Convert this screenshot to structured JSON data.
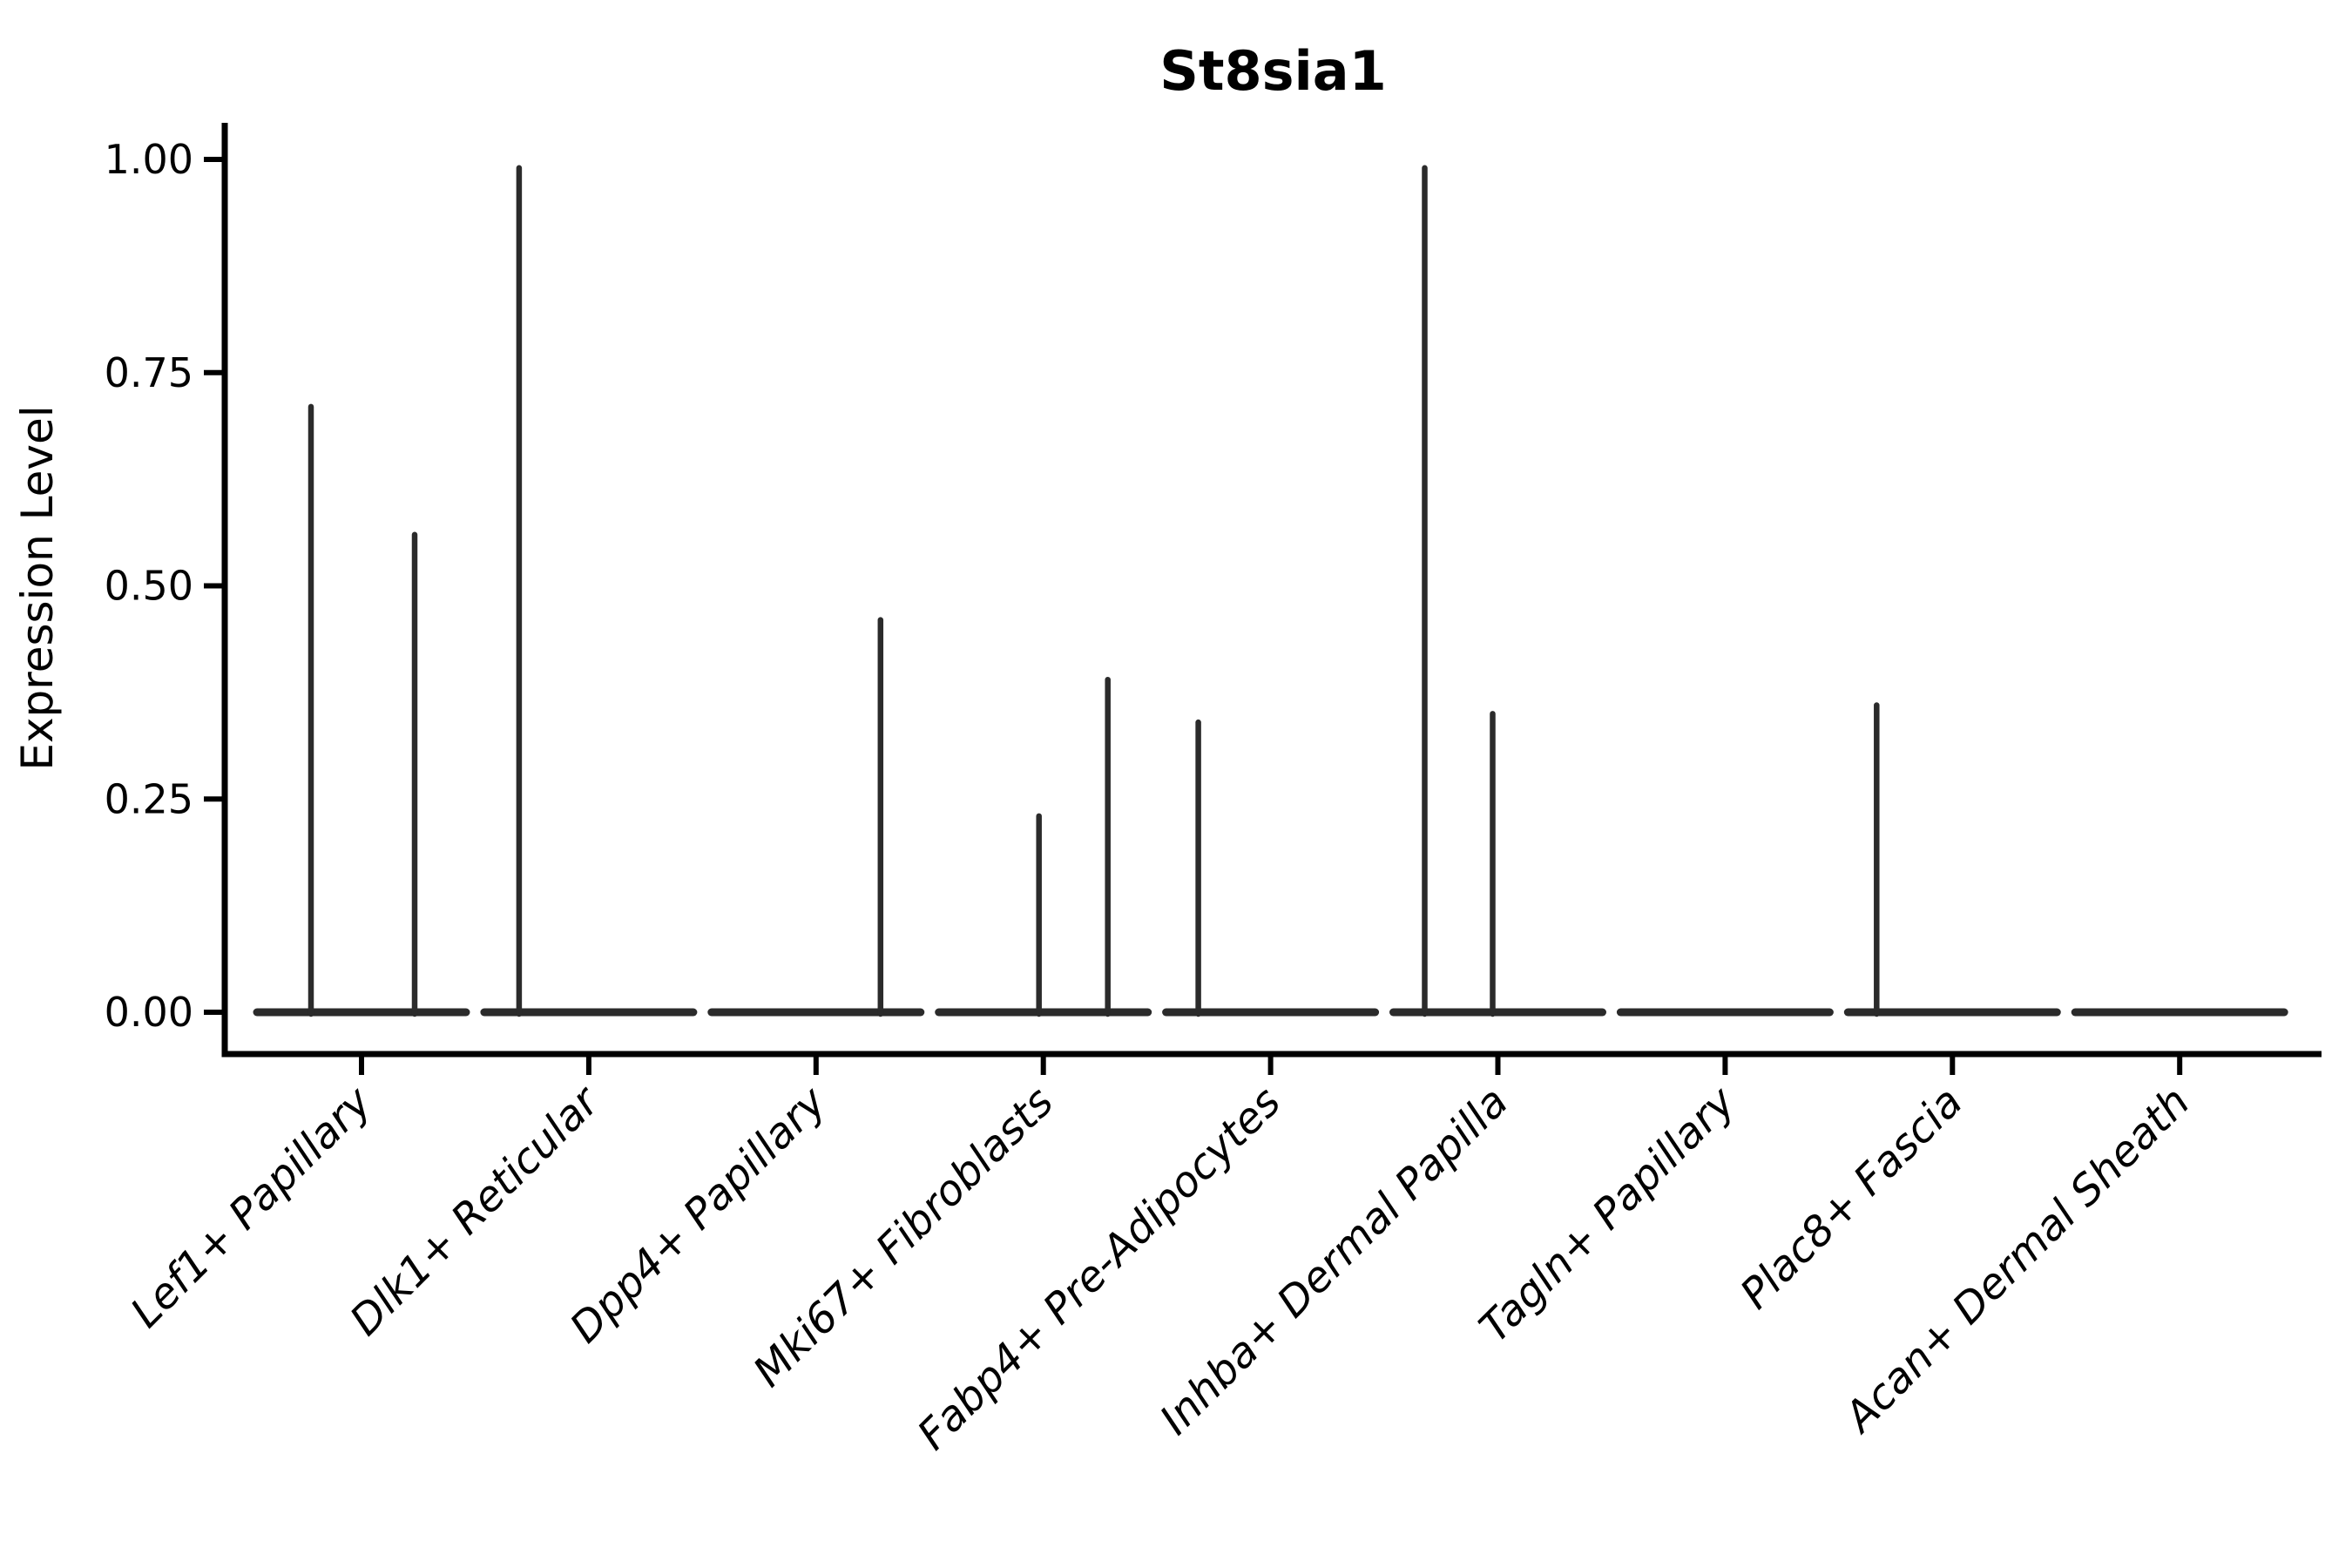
{
  "figure": {
    "title": "St8sia1",
    "y_axis": {
      "label": "Expression Level",
      "tick_labels": [
        "1.00",
        "0.75",
        "0.50",
        "0.25",
        "0.00"
      ],
      "tick_values": [
        1.0,
        0.75,
        0.5,
        0.25,
        0.0
      ]
    },
    "colors": {
      "background": "#ffffff",
      "axis": "#000000",
      "text": "#000000",
      "violin": "#2b2b2b"
    }
  },
  "chart_data": {
    "type": "violin",
    "title": "St8sia1",
    "xlabel": "",
    "ylabel": "Expression Level",
    "ylim": [
      0,
      1.0
    ],
    "yticks": [
      0.0,
      0.25,
      0.5,
      0.75,
      1.0
    ],
    "ytick_labels": [
      "0.00",
      "0.25",
      "0.50",
      "0.75",
      "1.00"
    ],
    "grid": false,
    "legend": "none",
    "x_tick_rotation_deg": 45,
    "categories": [
      "Lef1+ Papillary",
      "Dlk1+ Reticular",
      "Dpp4+ Papillary",
      "Mki67+ Fibroblasts",
      "Fabp4+ Pre-Adipocytes",
      "Inhba+ Dermal Papilla",
      "Tagln+ Papillary",
      "Plac8+ Fascia",
      "Acan+ Dermal Sheath"
    ],
    "violins": [
      {
        "category": "Lef1+ Papillary",
        "baseline_value": 0,
        "spikes": [
          {
            "value": 0.71,
            "offset": -58
          },
          {
            "value": 0.56,
            "offset": 61
          }
        ]
      },
      {
        "category": "Dlk1+ Reticular",
        "baseline_value": 0,
        "spikes": [
          {
            "value": 0.99,
            "offset": -80
          }
        ]
      },
      {
        "category": "Dpp4+ Papillary",
        "baseline_value": 0,
        "spikes": [
          {
            "value": 0.46,
            "offset": 74
          }
        ]
      },
      {
        "category": "Mki67+ Fibroblasts",
        "baseline_value": 0,
        "spikes": [
          {
            "value": 0.23,
            "offset": -5
          },
          {
            "value": 0.39,
            "offset": 74
          }
        ]
      },
      {
        "category": "Fabp4+ Pre-Adipocytes",
        "baseline_value": 0,
        "spikes": [
          {
            "value": 0.34,
            "offset": -83
          }
        ]
      },
      {
        "category": "Inhba+ Dermal Papilla",
        "baseline_value": 0,
        "spikes": [
          {
            "value": 0.99,
            "offset": -84
          },
          {
            "value": 0.35,
            "offset": -6
          }
        ]
      },
      {
        "category": "Tagln+ Papillary",
        "baseline_value": 0,
        "spikes": []
      },
      {
        "category": "Plac8+ Fascia",
        "baseline_value": 0,
        "spikes": [
          {
            "value": 0.36,
            "offset": -87
          }
        ]
      },
      {
        "category": "Acan+ Dermal Sheath",
        "baseline_value": 0,
        "spikes": []
      }
    ]
  }
}
